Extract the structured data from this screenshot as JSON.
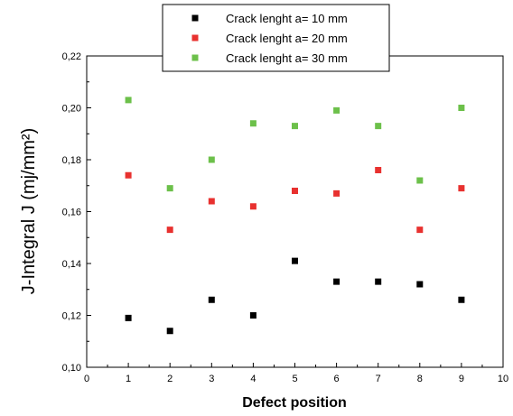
{
  "chart_data": {
    "type": "scatter",
    "xlabel": "Defect position",
    "ylabel": "J-Integral J (mj/mm²)",
    "xlim": [
      0,
      10
    ],
    "ylim": [
      0.1,
      0.22
    ],
    "x_ticks": [
      0,
      1,
      2,
      3,
      4,
      5,
      6,
      7,
      8,
      9,
      10
    ],
    "x_tick_labels": [
      "0",
      "1",
      "2",
      "3",
      "4",
      "5",
      "6",
      "7",
      "8",
      "9",
      "10"
    ],
    "y_ticks": [
      0.1,
      0.12,
      0.14,
      0.16,
      0.18,
      0.2,
      0.22
    ],
    "y_tick_labels": [
      "0,10",
      "0,12",
      "0,14",
      "0,16",
      "0,18",
      "0,20",
      "0,22"
    ],
    "grid": false,
    "legend_position": "top-center",
    "series": [
      {
        "name": "Crack lenght a= 10 mm",
        "color": "#000000",
        "x": [
          1,
          2,
          3,
          4,
          5,
          6,
          7,
          8,
          9
        ],
        "y": [
          0.119,
          0.114,
          0.126,
          0.12,
          0.141,
          0.133,
          0.133,
          0.132,
          0.126
        ]
      },
      {
        "name": "Crack lenght a= 20 mm",
        "color": "#e8312f",
        "x": [
          1,
          2,
          3,
          4,
          5,
          6,
          7,
          8,
          9
        ],
        "y": [
          0.174,
          0.153,
          0.164,
          0.162,
          0.168,
          0.167,
          0.176,
          0.153,
          0.169
        ]
      },
      {
        "name": "Crack lenght a= 30 mm",
        "color": "#6cc04a",
        "x": [
          1,
          2,
          3,
          4,
          5,
          6,
          7,
          8,
          9
        ],
        "y": [
          0.203,
          0.169,
          0.18,
          0.194,
          0.193,
          0.199,
          0.193,
          0.172,
          0.2
        ]
      }
    ]
  }
}
